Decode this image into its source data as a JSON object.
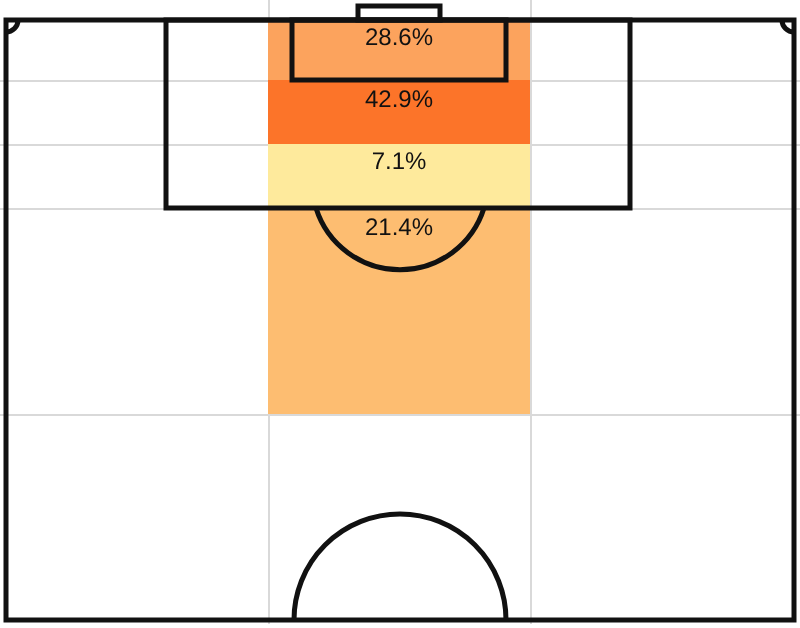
{
  "chart_data": {
    "type": "other",
    "categories": [
      null,
      null,
      null,
      null
    ],
    "values": [
      28.6,
      42.9,
      7.1,
      21.4
    ],
    "value_labels": [
      "28.6%",
      "42.9%",
      "7.1%",
      "21.4%"
    ],
    "colors": [
      "#fca35d",
      "#fc7429",
      "#feea9c",
      "#fdbd71"
    ]
  }
}
